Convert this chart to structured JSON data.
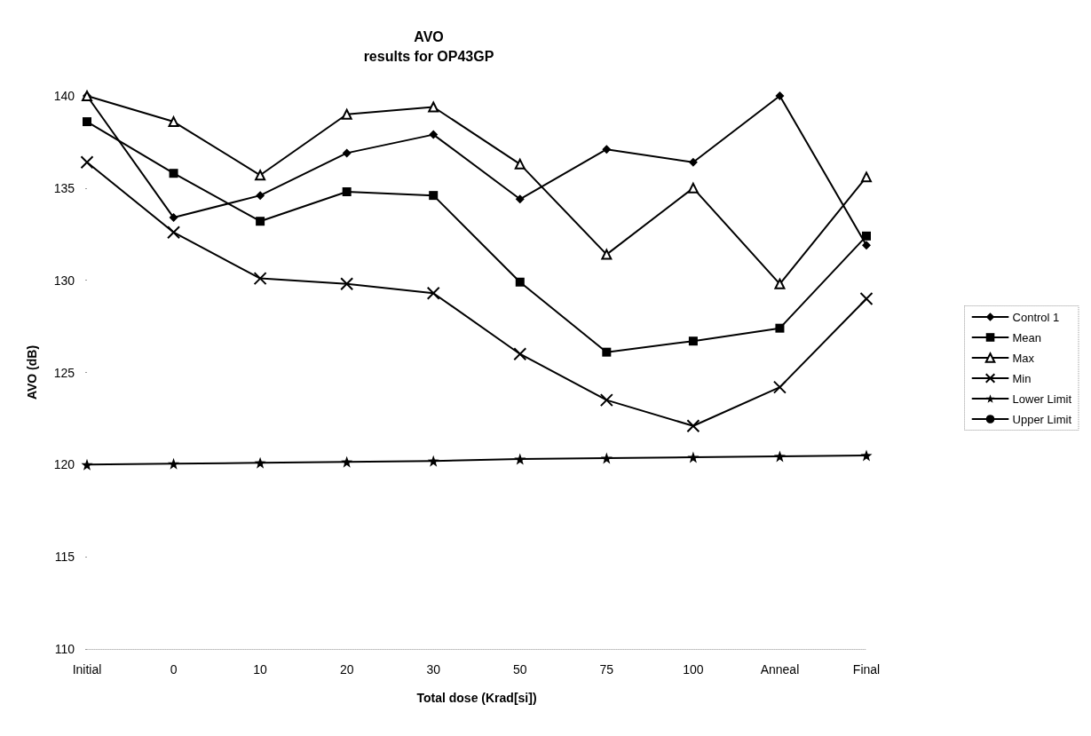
{
  "chart_data": {
    "type": "line",
    "title": "AVO",
    "subtitle": "results for OP43GP",
    "xlabel": "Total dose (Krad[si])",
    "ylabel": "AVO (dB)",
    "categories": [
      "Initial",
      "0",
      "10",
      "20",
      "30",
      "50",
      "75",
      "100",
      "Anneal",
      "Final"
    ],
    "series": [
      {
        "name": "Control 1",
        "color": "#000000",
        "marker": "diamond",
        "values": [
          140.0,
          133.4,
          134.6,
          136.9,
          137.9,
          134.4,
          137.1,
          136.4,
          140.0,
          131.9
        ]
      },
      {
        "name": "Mean",
        "color": "#000000",
        "marker": "square",
        "values": [
          138.6,
          135.8,
          133.2,
          134.8,
          134.6,
          129.9,
          126.1,
          126.7,
          127.4,
          132.4
        ]
      },
      {
        "name": "Max",
        "color": "#000000",
        "marker": "triangle",
        "values": [
          140.0,
          138.6,
          135.7,
          139.0,
          139.4,
          136.3,
          131.4,
          135.0,
          129.8,
          135.6
        ]
      },
      {
        "name": "Min",
        "color": "#000000",
        "marker": "cross",
        "values": [
          136.4,
          132.6,
          130.1,
          129.8,
          129.3,
          126.0,
          123.5,
          122.1,
          124.2,
          129.0
        ]
      },
      {
        "name": "Lower Limit",
        "color": "#000000",
        "marker": "star",
        "values": [
          120.0,
          120.05,
          120.1,
          120.15,
          120.2,
          120.3,
          120.35,
          120.4,
          120.45,
          120.5
        ]
      },
      {
        "name": "Upper Limit",
        "color": "#000000",
        "marker": "circle",
        "values": [
          null,
          null,
          null,
          null,
          null,
          null,
          null,
          null,
          null,
          null
        ]
      }
    ],
    "ylim": [
      110,
      140
    ],
    "yticks": [
      110,
      115,
      120,
      125,
      130,
      135,
      140
    ],
    "grid": false,
    "legend": "right",
    "line_style": "solid"
  }
}
